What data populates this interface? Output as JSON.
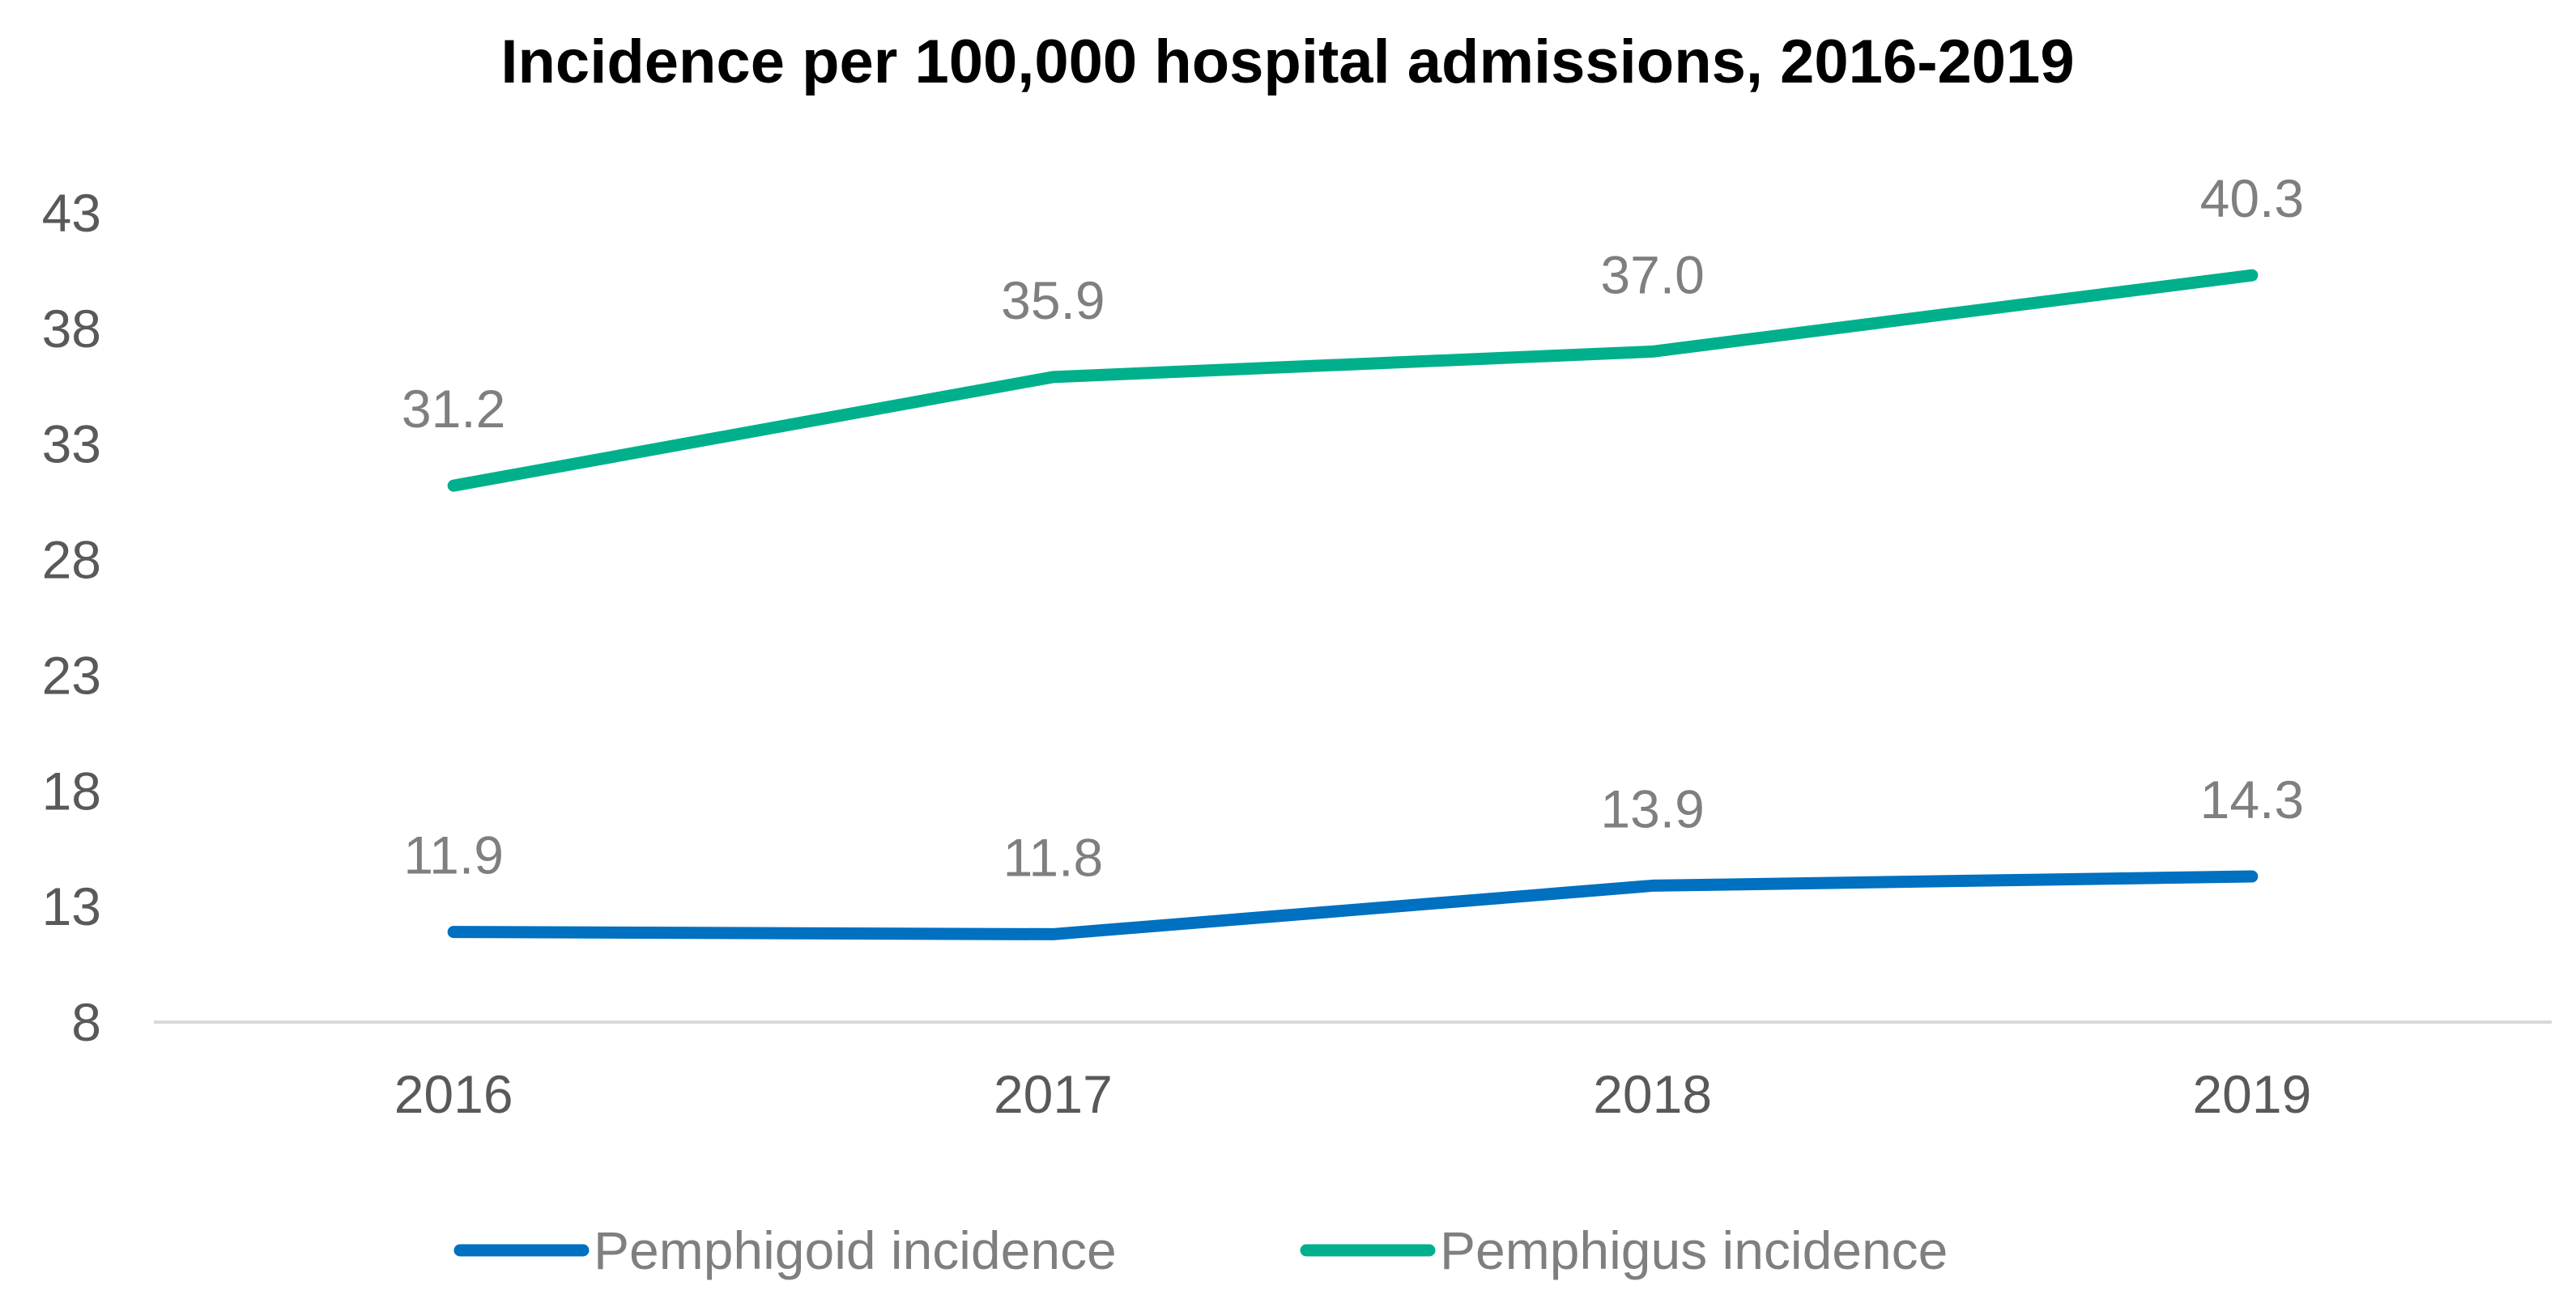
{
  "chart_data": {
    "type": "line",
    "title": "Incidence per 100,000 hospital admissions, 2016-2019",
    "xlabel": "",
    "ylabel": "",
    "categories": [
      "2016",
      "2017",
      "2018",
      "2019"
    ],
    "yticks": [
      "8",
      "13",
      "18",
      "23",
      "28",
      "33",
      "38",
      "43"
    ],
    "ylim": [
      8,
      43
    ],
    "grid": false,
    "legend_position": "bottom",
    "series": [
      {
        "name": "Pemphigoid incidence",
        "color": "#0070C0",
        "values": [
          11.9,
          11.8,
          13.9,
          14.3
        ],
        "labels": [
          "11.9",
          "11.8",
          "13.9",
          "14.3"
        ]
      },
      {
        "name": "Pemphigus incidence",
        "color": "#00B08C",
        "values": [
          31.2,
          35.9,
          37.0,
          40.3
        ],
        "labels": [
          "31.2",
          "35.9",
          "37.0",
          "40.3"
        ]
      }
    ]
  }
}
